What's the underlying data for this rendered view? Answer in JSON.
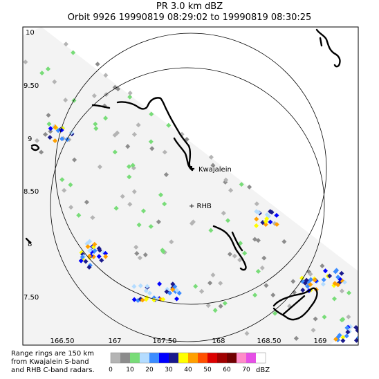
{
  "title": "PR  3.0 km dBZ",
  "subtitle": "Orbit 9926 19990819 08:29:02 to 19990819 08:30:25",
  "axes": {
    "lat_ticks": [
      "10",
      "9.50",
      "9",
      "8.50",
      "8",
      "7.50"
    ],
    "lon_ticks": [
      "166.50",
      "167",
      "167.50",
      "168",
      "168.50",
      "169"
    ]
  },
  "places": {
    "kwajalein": "Kwajalein",
    "rhb": "+ RHB"
  },
  "note": {
    "line1": "Range rings are 150 km",
    "line2": "from Kwajalein S-band",
    "line3": "and RHB C-band radars."
  },
  "colorbar": {
    "labels": [
      "0",
      "10",
      "20",
      "30",
      "40",
      "50",
      "60",
      "70"
    ],
    "unit": "dBZ",
    "colors": [
      "#b4b4b4",
      "#8c8c8c",
      "#78dc78",
      "#b4dcff",
      "#3c8cff",
      "#0000ff",
      "#1a1a8c",
      "#ffff00",
      "#ffa000",
      "#ff5000",
      "#dc0000",
      "#a00000",
      "#700000",
      "#ff8cc8",
      "#e650e6",
      "#ffffff"
    ]
  }
}
